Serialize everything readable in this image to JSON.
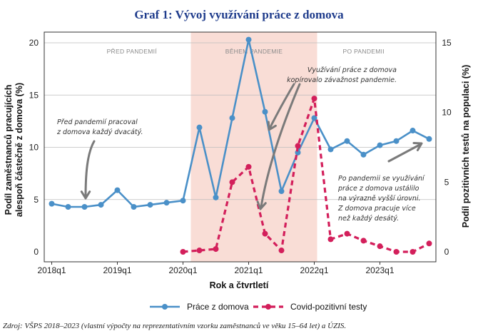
{
  "chart_data": {
    "type": "line",
    "title": "Graf 1: Vývoj využívání práce z domova",
    "xlabel": "Rok a čtvrtletí",
    "ylabel_left": "Podíl zaměstnanců pracujících alespoň částečně z domova (%)",
    "ylabel_right": "Podíl pozitivních testů na populaci (%)",
    "ylim_left": [
      0,
      20
    ],
    "ylim_right": [
      0,
      15
    ],
    "yticks_left": [
      0,
      5,
      10,
      15,
      20
    ],
    "yticks_right": [
      0,
      5,
      10,
      15
    ],
    "xticks": [
      "2018q1",
      "2019q1",
      "2020q1",
      "2021q1",
      "2022q1",
      "2023q1"
    ],
    "x": [
      "2018q1",
      "2018q2",
      "2018q3",
      "2018q4",
      "2019q1",
      "2019q2",
      "2019q3",
      "2019q4",
      "2020q1",
      "2020q2",
      "2020q3",
      "2020q4",
      "2021q1",
      "2021q2",
      "2021q3",
      "2021q4",
      "2022q1",
      "2022q2",
      "2022q3",
      "2022q4",
      "2023q1",
      "2023q2",
      "2023q3",
      "2023q4"
    ],
    "grid": true,
    "legend_position": "bottom",
    "periods": [
      {
        "label": "PŘED PANDEMIÍ",
        "from": "2018q1",
        "to": "2020q1",
        "shaded": false
      },
      {
        "label": "BĚHEM PANDEMIE",
        "from": "2020q1",
        "to": "2022q1",
        "shaded": true
      },
      {
        "label": "PO PANDEMII",
        "from": "2022q1",
        "to": "2023q4",
        "shaded": false
      }
    ],
    "series": [
      {
        "name": "Práce z domova",
        "axis": "left",
        "style": "solid",
        "marker": "circle",
        "color": "#4a90c8",
        "values": [
          4.6,
          4.3,
          4.3,
          4.5,
          5.9,
          4.3,
          4.5,
          4.7,
          4.9,
          11.9,
          5.2,
          12.8,
          20.3,
          13.4,
          5.8,
          9.5,
          12.8,
          9.8,
          10.6,
          9.3,
          10.2,
          10.6,
          11.6,
          10.8
        ]
      },
      {
        "name": "Covid-pozitivní testy",
        "axis": "right",
        "style": "dashed",
        "marker": "circle",
        "color": "#d31f5b",
        "values": [
          null,
          null,
          null,
          null,
          null,
          null,
          null,
          null,
          0.0,
          0.1,
          0.2,
          5.0,
          6.1,
          1.3,
          0.1,
          7.6,
          11.0,
          0.9,
          1.3,
          0.8,
          0.4,
          0.0,
          0.0,
          0.6
        ]
      }
    ],
    "annotations": [
      {
        "lines": [
          "Před pandemií pracoval",
          "z domova každý dvacátý."
        ]
      },
      {
        "lines": [
          "Využívání práce z domova",
          "kopírovalo závažnost pandemie."
        ]
      },
      {
        "lines": [
          "Po pandemii se využívání",
          "práce z domova ustálilo",
          "na výrazně vyšší úrovni.",
          "Z domova pracuje více",
          "než každý desátý."
        ]
      }
    ],
    "source": "Zdroj: VŠPS 2018–2023 (vlastní výpočty na reprezentativním vzorku zaměstnanců ve věku 15–64 let) a ÚZIS."
  },
  "colors": {
    "title": "#1f3c8c",
    "pandemic_shade": "#f9ddd6",
    "grid": "#bdbdbd"
  }
}
